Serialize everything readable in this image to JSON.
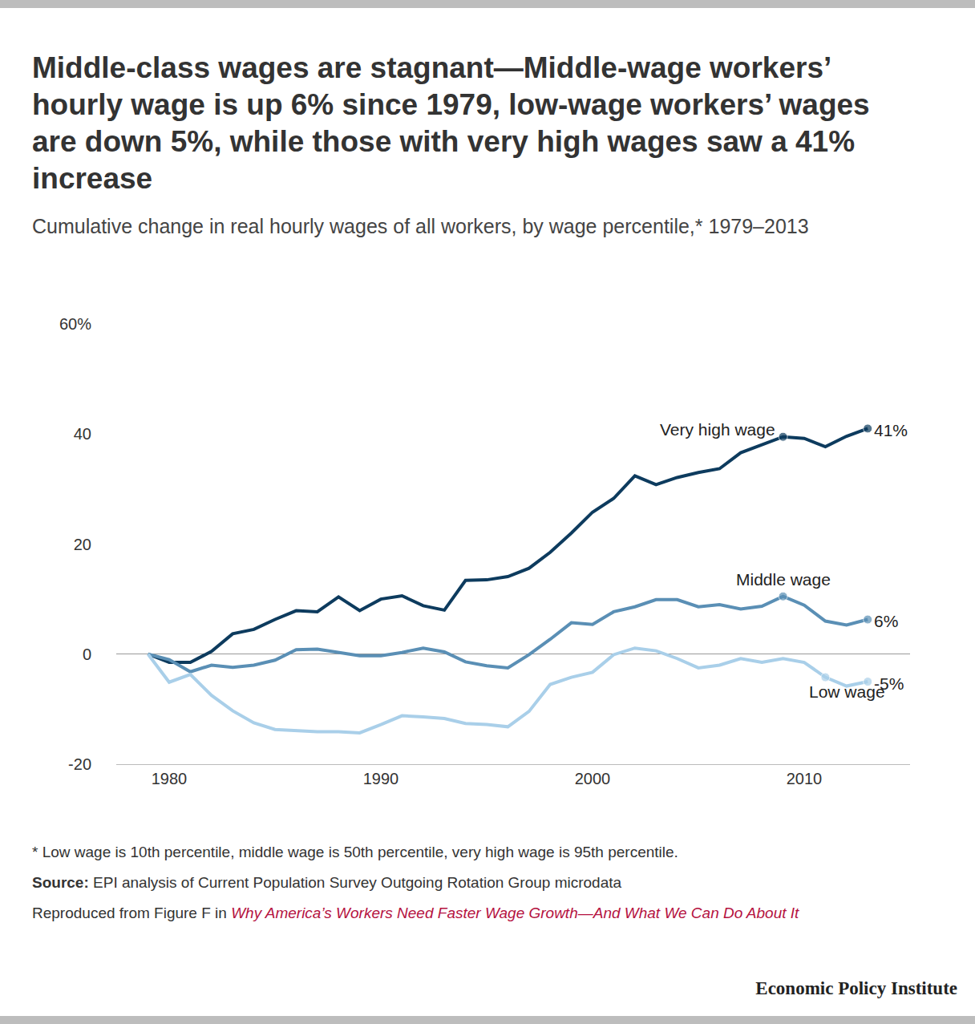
{
  "chart_data": {
    "type": "line",
    "title": "Middle-class wages are stagnant—Middle-wage workers’ hourly wage is up 6% since 1979, low-wage workers’ wages are down 5%, while those with very high wages saw a 41% increase",
    "subtitle": "Cumulative change in real hourly wages of all workers, by wage percentile,* 1979–2013",
    "x": [
      1979,
      1980,
      1981,
      1982,
      1983,
      1984,
      1985,
      1986,
      1987,
      1988,
      1989,
      1990,
      1991,
      1992,
      1993,
      1994,
      1995,
      1996,
      1997,
      1998,
      1999,
      2000,
      2001,
      2002,
      2003,
      2004,
      2005,
      2006,
      2007,
      2008,
      2009,
      2010,
      2011,
      2012,
      2013
    ],
    "series": [
      {
        "name": "Very high wage",
        "color": "#0d3b5e",
        "values": [
          0,
          -1.5,
          -1.5,
          0.5,
          3.7,
          4.5,
          6.3,
          7.9,
          7.7,
          10.4,
          7.9,
          10,
          10.6,
          8.8,
          8,
          13.4,
          13.5,
          14.1,
          15.6,
          18.5,
          22,
          25.8,
          28.3,
          32.4,
          30.8,
          32.1,
          33,
          33.7,
          36.6,
          38.1,
          39.5,
          39.2,
          37.7,
          39.6,
          41
        ],
        "value_labels": [
          null,
          null,
          null,
          null,
          null,
          null,
          null,
          null,
          null,
          null,
          null,
          null,
          null,
          null,
          null,
          null,
          null,
          null,
          null,
          null,
          null,
          null,
          null,
          null,
          null,
          null,
          null,
          null,
          null,
          null,
          null,
          null,
          null,
          null,
          "41%"
        ]
      },
      {
        "name": "Middle wage",
        "color": "#5a8fb5",
        "values": [
          0,
          -1,
          -3.2,
          -2,
          -2.4,
          -2,
          -1.1,
          0.8,
          0.9,
          0.3,
          -0.3,
          -0.3,
          0.3,
          1.1,
          0.4,
          -1.4,
          -2.1,
          -2.5,
          -0.1,
          2.7,
          5.7,
          5.4,
          7.7,
          8.6,
          9.9,
          9.9,
          8.6,
          9,
          8.2,
          8.7,
          10.5,
          8.9,
          6,
          5.3,
          6.3
        ],
        "value_labels": [
          null,
          null,
          null,
          null,
          null,
          null,
          null,
          null,
          null,
          null,
          null,
          null,
          null,
          null,
          null,
          null,
          null,
          null,
          null,
          null,
          null,
          null,
          null,
          null,
          null,
          null,
          null,
          null,
          null,
          null,
          null,
          null,
          null,
          null,
          "6%"
        ]
      },
      {
        "name": "Low wage",
        "color": "#a9cfe9",
        "values": [
          0,
          -5.1,
          -3.7,
          -7.5,
          -10.3,
          -12.5,
          -13.7,
          -13.9,
          -14.1,
          -14.1,
          -14.3,
          -12.8,
          -11.2,
          -11.4,
          -11.7,
          -12.6,
          -12.8,
          -13.2,
          -10.4,
          -5.5,
          -4.2,
          -3.3,
          -0.1,
          1.1,
          0.6,
          -0.8,
          -2.5,
          -2,
          -0.8,
          -1.5,
          -0.8,
          -1.5,
          -4.2,
          -5.8,
          -5
        ],
        "value_labels": [
          null,
          null,
          null,
          null,
          null,
          null,
          null,
          null,
          null,
          null,
          null,
          null,
          null,
          null,
          null,
          null,
          null,
          null,
          null,
          null,
          null,
          null,
          null,
          null,
          null,
          null,
          null,
          null,
          null,
          null,
          null,
          null,
          null,
          null,
          "-5%"
        ]
      }
    ],
    "xlim": [
      1977.5,
      2015
    ],
    "xticks": [
      1980,
      1990,
      2000,
      2010
    ],
    "ylim": [
      -20,
      60
    ],
    "yticks": [
      -20,
      0,
      20,
      40,
      {
        "value": 60,
        "label": "60%"
      }
    ],
    "grid": false,
    "footnote": "* Low wage is 10th percentile, middle wage is 50th percentile, very high wage is 95th percentile.",
    "source_label": "Source:",
    "source": "EPI analysis of Current Population Survey Outgoing Rotation Group microdata",
    "reproduced_prefix": "Reproduced from Figure F in",
    "reproduced_title": "Why America’s Workers Need Faster Wage Growth—And What We Can Do About It",
    "organization": "Economic Policy Institute"
  }
}
